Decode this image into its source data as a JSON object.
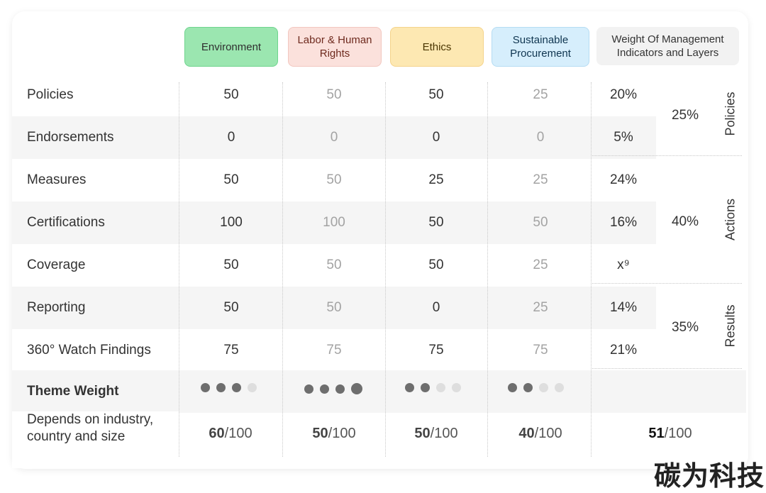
{
  "headers": {
    "environment": "Environment",
    "labor": "Labor & Human Rights",
    "ethics": "Ethics",
    "sustainable": "Sustainable Procurement",
    "weight": "Weight Of Management Indicators and Layers"
  },
  "colors": {
    "environment": "#9be6b0",
    "labor": "#fbe1dc",
    "ethics": "#fde8b2",
    "sustainable": "#d6eefc",
    "weight": "#f2f2f2"
  },
  "rows": [
    {
      "label": "Policies",
      "environment": "50",
      "labor": "50",
      "ethics": "50",
      "sustainable": "25",
      "indicator_weight": "20%"
    },
    {
      "label": "Endorsements",
      "environment": "0",
      "labor": "0",
      "ethics": "0",
      "sustainable": "0",
      "indicator_weight": "5%"
    },
    {
      "label": "Measures",
      "environment": "50",
      "labor": "50",
      "ethics": "25",
      "sustainable": "25",
      "indicator_weight": "24%"
    },
    {
      "label": "Certifications",
      "environment": "100",
      "labor": "100",
      "ethics": "50",
      "sustainable": "50",
      "indicator_weight": "16%"
    },
    {
      "label": "Coverage",
      "environment": "50",
      "labor": "50",
      "ethics": "50",
      "sustainable": "25",
      "indicator_weight": "x⁹"
    },
    {
      "label": "Reporting",
      "environment": "50",
      "labor": "50",
      "ethics": "0",
      "sustainable": "25",
      "indicator_weight": "14%"
    },
    {
      "label": "360° Watch Findings",
      "environment": "75",
      "labor": "75",
      "ethics": "75",
      "sustainable": "75",
      "indicator_weight": "21%"
    }
  ],
  "layers": [
    {
      "name": "Policies",
      "weight": "25%"
    },
    {
      "name": "Actions",
      "weight": "40%"
    },
    {
      "name": "Results",
      "weight": "35%"
    }
  ],
  "theme_weight": {
    "label": "Theme Weight",
    "environment": 3,
    "labor": 4,
    "ethics": 2,
    "sustainable": 2,
    "max": 4
  },
  "footer": {
    "label": "Depends on industry, country and size",
    "scores": [
      {
        "value": "60",
        "suffix": "/100"
      },
      {
        "value": "50",
        "suffix": "/100"
      },
      {
        "value": "50",
        "suffix": "/100"
      },
      {
        "value": "40",
        "suffix": "/100"
      },
      {
        "value": "51",
        "suffix": "/100"
      }
    ]
  },
  "watermark": "碳为科技"
}
